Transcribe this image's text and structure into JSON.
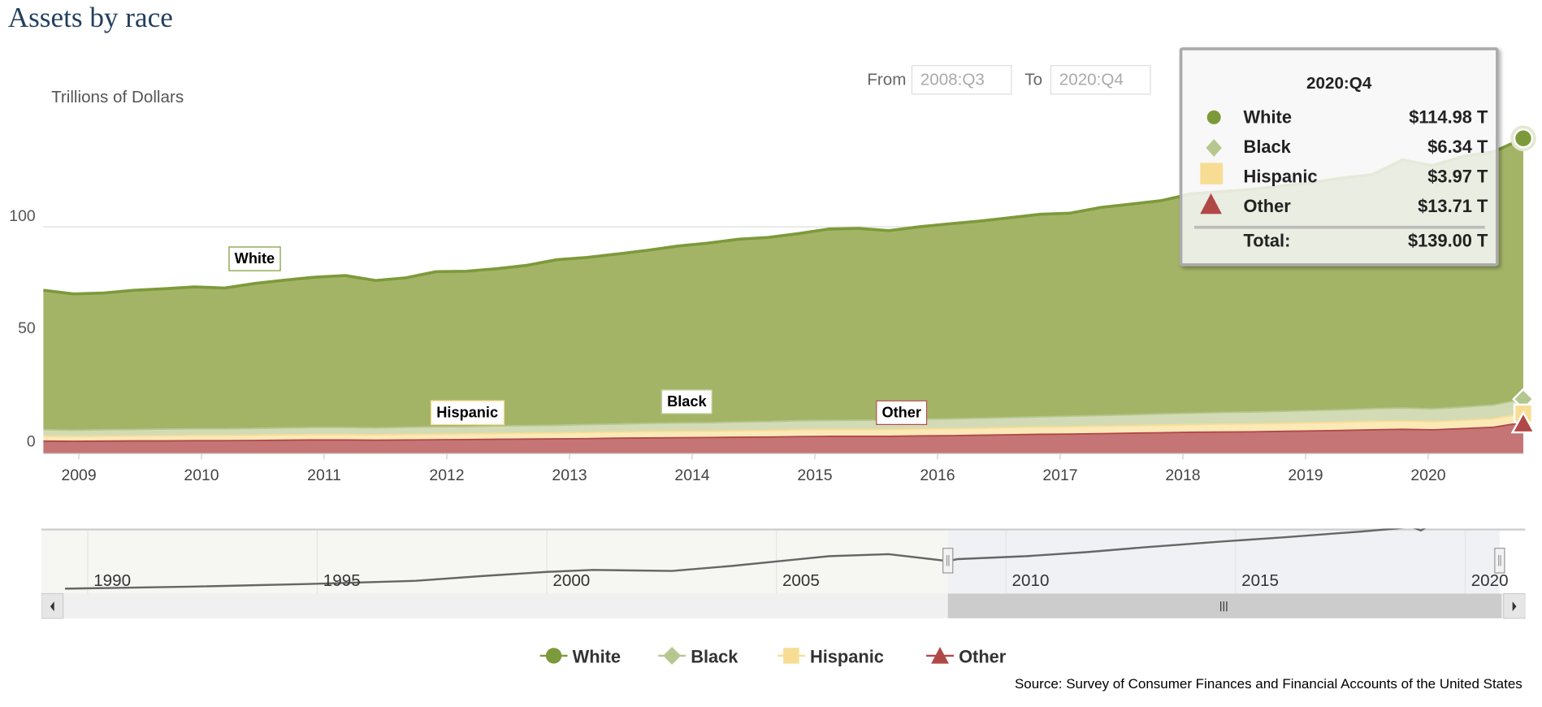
{
  "title": "Assets by race",
  "range": {
    "from_label": "From",
    "from_value": "2008:Q3",
    "to_label": "To",
    "to_value": "2020:Q4"
  },
  "tooltip": {
    "period": "2020:Q4",
    "rows": [
      {
        "name": "White",
        "value": "$114.98 T"
      },
      {
        "name": "Black",
        "value": "$6.34 T"
      },
      {
        "name": "Hispanic",
        "value": "$3.97 T"
      },
      {
        "name": "Other",
        "value": "$13.71 T"
      }
    ],
    "total_label": "Total:",
    "total_value": "$139.00 T"
  },
  "annotations": {
    "white": "White",
    "hispanic": "Hispanic",
    "black": "Black",
    "other": "Other"
  },
  "navigator": {
    "ticks": [
      "1990",
      "1995",
      "2000",
      "2005",
      "2010",
      "2015",
      "2020"
    ],
    "selected_range": [
      "2008:Q3",
      "2020:Q4"
    ]
  },
  "source": "Source: Survey of Consumer Finances and Financial Accounts of the United States",
  "colors": {
    "White": "#7d9a3a",
    "Black": "#b5c78f",
    "Hispanic": "#f7dd94",
    "Other": "#b04848"
  },
  "chart_data": {
    "type": "area",
    "stacked": true,
    "ylabel": "Trillions of Dollars",
    "ylim": [
      0,
      140
    ],
    "yticks": [
      "0",
      "50",
      "100"
    ],
    "xticks": [
      "2009",
      "2010",
      "2011",
      "2012",
      "2013",
      "2014",
      "2015",
      "2016",
      "2017",
      "2018",
      "2019",
      "2020"
    ],
    "x_start": "2008:Q3",
    "x_end": "2020:Q4",
    "x_step": "quarter",
    "grid": true,
    "legend": "bottom",
    "series": [
      {
        "name": "White",
        "marker": "circle",
        "values": [
          61.5,
          60.1,
          60.3,
          61.4,
          61.9,
          62.6,
          62.1,
          63.9,
          65.2,
          66.3,
          67.0,
          65.0,
          65.9,
          68.4,
          68.5,
          69.3,
          70.7,
          73.0,
          73.7,
          75.0,
          76.3,
          78.0,
          79.2,
          80.6,
          81.2,
          82.5,
          84.4,
          84.6,
          83.6,
          84.9,
          86.0,
          86.9,
          88.1,
          89.3,
          89.5,
          91.7,
          92.9,
          94.0,
          96.7,
          97.4,
          98.2,
          99.4,
          100.5,
          102.2,
          103.2,
          109.4,
          107.3,
          110.5,
          111.6,
          114.98
        ]
      },
      {
        "name": "Black",
        "marker": "diamond",
        "values": [
          2.8,
          2.7,
          2.8,
          2.8,
          2.9,
          2.9,
          2.9,
          3.0,
          3.0,
          3.1,
          3.1,
          3.0,
          3.1,
          3.2,
          3.2,
          3.3,
          3.3,
          3.4,
          3.5,
          3.5,
          3.6,
          3.7,
          3.7,
          3.8,
          3.9,
          4.0,
          4.0,
          4.1,
          4.1,
          4.2,
          4.3,
          4.4,
          4.4,
          4.5,
          4.6,
          4.7,
          4.8,
          4.9,
          5.0,
          5.1,
          5.2,
          5.3,
          5.4,
          5.5,
          5.6,
          5.7,
          5.6,
          5.8,
          6.0,
          6.34
        ]
      },
      {
        "name": "Hispanic",
        "marker": "square",
        "values": [
          2.2,
          2.2,
          2.2,
          2.2,
          2.3,
          2.3,
          2.3,
          2.3,
          2.4,
          2.4,
          2.4,
          2.4,
          2.5,
          2.5,
          2.5,
          2.6,
          2.6,
          2.6,
          2.7,
          2.7,
          2.8,
          2.8,
          2.8,
          2.9,
          2.9,
          3.0,
          3.0,
          3.0,
          3.0,
          3.1,
          3.1,
          3.1,
          3.2,
          3.2,
          3.3,
          3.3,
          3.3,
          3.4,
          3.4,
          3.5,
          3.5,
          3.5,
          3.6,
          3.6,
          3.7,
          3.7,
          3.6,
          3.7,
          3.8,
          3.97
        ]
      },
      {
        "name": "Other",
        "marker": "triangle",
        "values": [
          5.5,
          5.4,
          5.5,
          5.6,
          5.6,
          5.7,
          5.7,
          5.8,
          5.9,
          6.0,
          6.0,
          5.9,
          6.0,
          6.1,
          6.2,
          6.3,
          6.4,
          6.5,
          6.6,
          6.8,
          6.9,
          7.0,
          7.1,
          7.2,
          7.3,
          7.5,
          7.6,
          7.6,
          7.6,
          7.8,
          7.9,
          8.1,
          8.3,
          8.5,
          8.6,
          8.8,
          9.0,
          9.2,
          9.4,
          9.5,
          9.6,
          9.8,
          10.0,
          10.2,
          10.5,
          10.7,
          10.5,
          11.0,
          11.6,
          13.71
        ]
      }
    ]
  }
}
